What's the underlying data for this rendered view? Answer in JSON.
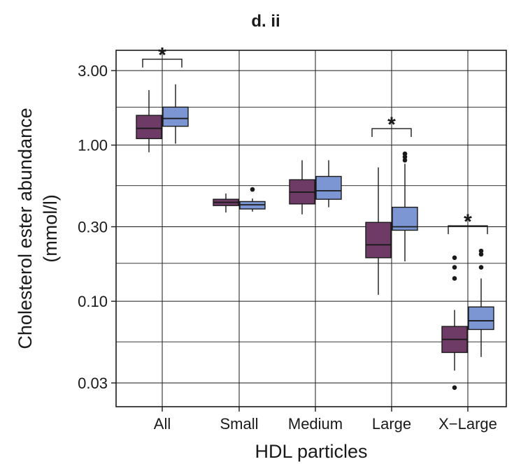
{
  "chart_data": {
    "type": "box",
    "title": "d. ii",
    "xlabel": "HDL particles",
    "ylabel_line1": "Cholesterol ester abundance",
    "ylabel_line2": "(mmol/l)",
    "yscale": "log",
    "ylim": [
      0.022,
      4.2
    ],
    "yticks": [
      0.03,
      0.1,
      0.3,
      1.0,
      3.0
    ],
    "ytick_labels": [
      "0.03",
      "0.10",
      "0.30",
      "1.00",
      "3.00"
    ],
    "y_minor_gridlines": [
      0.055,
      0.175,
      0.55,
      1.75
    ],
    "grid": true,
    "categories": [
      "All",
      "Small",
      "Medium",
      "Large",
      "X−Large"
    ],
    "significance_marker": "*",
    "significant_categories": [
      "All",
      "Large",
      "X−Large"
    ],
    "series": [
      {
        "color": "#6e3b66",
        "boxes": [
          {
            "whisker_low": 0.9,
            "q1": 1.1,
            "median": 1.28,
            "q3": 1.55,
            "whisker_high": 2.25,
            "outliers": []
          },
          {
            "whisker_low": 0.37,
            "q1": 0.41,
            "median": 0.43,
            "q3": 0.45,
            "whisker_high": 0.49,
            "outliers": []
          },
          {
            "whisker_low": 0.36,
            "q1": 0.42,
            "median": 0.5,
            "q3": 0.6,
            "whisker_high": 0.8,
            "outliers": []
          },
          {
            "whisker_low": 0.11,
            "q1": 0.19,
            "median": 0.23,
            "q3": 0.32,
            "whisker_high": 0.72,
            "outliers": []
          },
          {
            "whisker_low": 0.036,
            "q1": 0.047,
            "median": 0.057,
            "q3": 0.069,
            "whisker_high": 0.088,
            "outliers": [
              0.19,
              0.165,
              0.14,
              0.028
            ]
          }
        ]
      },
      {
        "color": "#7b96d2",
        "boxes": [
          {
            "whisker_low": 1.02,
            "q1": 1.32,
            "median": 1.48,
            "q3": 1.75,
            "whisker_high": 2.45,
            "outliers": []
          },
          {
            "whisker_low": 0.375,
            "q1": 0.39,
            "median": 0.415,
            "q3": 0.435,
            "whisker_high": 0.455,
            "outliers": [
              0.52
            ]
          },
          {
            "whisker_low": 0.4,
            "q1": 0.45,
            "median": 0.51,
            "q3": 0.63,
            "whisker_high": 0.8,
            "outliers": []
          },
          {
            "whisker_low": 0.18,
            "q1": 0.285,
            "median": 0.3,
            "q3": 0.4,
            "whisker_high": 0.76,
            "outliers": [
              0.88,
              0.84,
              0.8
            ]
          },
          {
            "whisker_low": 0.044,
            "q1": 0.066,
            "median": 0.075,
            "q3": 0.092,
            "whisker_high": 0.14,
            "outliers": [
              0.21,
              0.2,
              0.165
            ]
          }
        ]
      }
    ]
  }
}
